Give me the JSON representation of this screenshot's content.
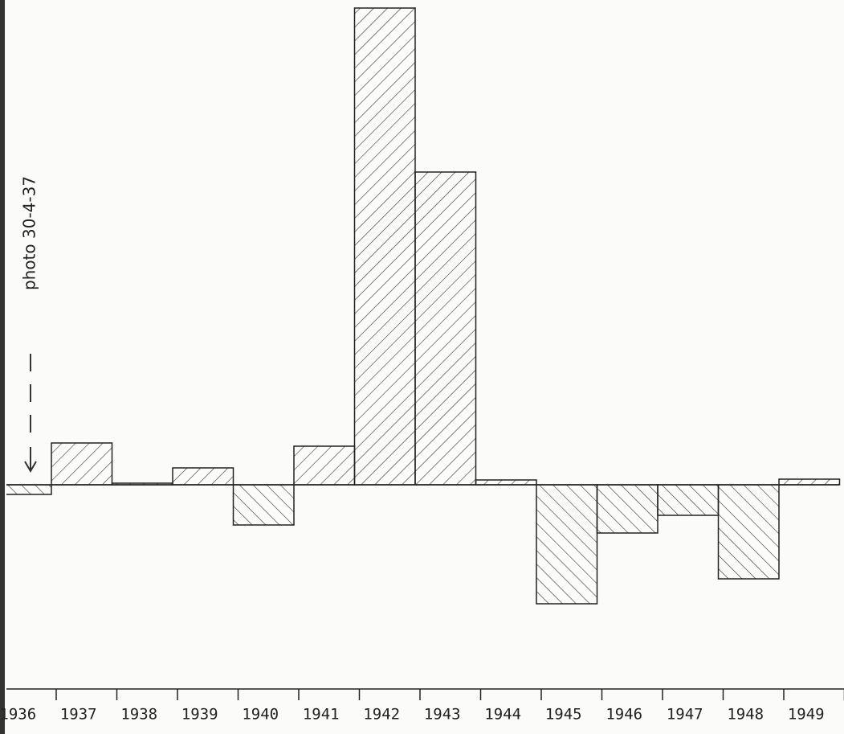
{
  "chart_data": {
    "type": "bar",
    "annotation": "photo 30-4-37",
    "categories": [
      "1936",
      "1937",
      "1938",
      "1939",
      "1940",
      "1941",
      "1942",
      "1943",
      "1944",
      "1945",
      "1946",
      "1947",
      "1948",
      "1949"
    ],
    "values": [
      -12,
      52,
      2,
      21,
      -50,
      48,
      593,
      389,
      6,
      -148,
      -60,
      -38,
      -117,
      7
    ],
    "ylim": [
      -254,
      603
    ],
    "color": "#222222"
  }
}
